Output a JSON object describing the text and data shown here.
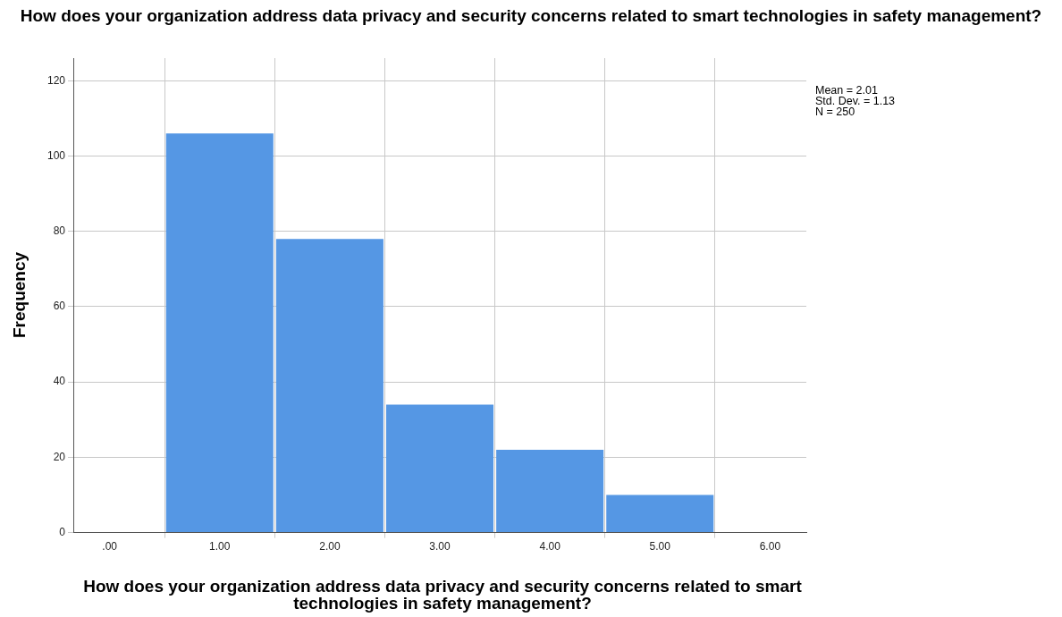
{
  "chart_data": {
    "type": "histogram",
    "title": "How does your organization address data privacy and security concerns related to smart technologies in safety management?",
    "xlabel": "How does your organization address data privacy and security concerns related to smart technologies in safety management?",
    "ylabel": "Frequency",
    "bins": [
      0.5,
      1.5,
      2.5,
      3.5,
      4.5,
      5.5
    ],
    "values": [
      106,
      78,
      34,
      22,
      10
    ],
    "color": "#5597e4",
    "xlim": [
      -0.33,
      6.33
    ],
    "xticks": [
      {
        "value": 0,
        "label": ".00"
      },
      {
        "value": 1,
        "label": "1.00"
      },
      {
        "value": 2,
        "label": "2.00"
      },
      {
        "value": 3,
        "label": "3.00"
      },
      {
        "value": 4,
        "label": "4.00"
      },
      {
        "value": 5,
        "label": "5.00"
      },
      {
        "value": 6,
        "label": "6.00"
      }
    ],
    "ylim": [
      0,
      126
    ],
    "yticks": [
      0,
      20,
      40,
      60,
      80,
      100,
      120
    ],
    "grid": true,
    "annotations": [
      "Mean = 2.01",
      "Std. Dev. = 1.13",
      "N = 250"
    ]
  }
}
